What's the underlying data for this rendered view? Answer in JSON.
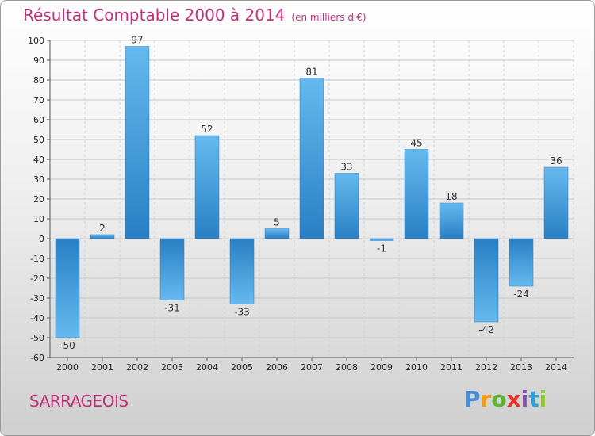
{
  "header": {
    "title": "Résultat Comptable 2000 à 2014",
    "unit": "(en milliers d'€)"
  },
  "footer": {
    "place": "SARRAGEOIS"
  },
  "logo": {
    "letters": [
      "P",
      "r",
      "o",
      "x",
      "i",
      "t",
      "i"
    ],
    "colors": [
      "#4a8fd6",
      "#f39a1f",
      "#5bb233",
      "#e5332a",
      "#8a4fb6",
      "#2aa3d8",
      "#8cc63f"
    ]
  },
  "colors": {
    "bar_top": "#65b9ee",
    "bar_bottom": "#2a7fc4",
    "title": "#c0307a"
  },
  "chart_data": {
    "type": "bar",
    "title": "Résultat Comptable 2000 à 2014",
    "categories": [
      "2000",
      "2001",
      "2002",
      "2003",
      "2004",
      "2005",
      "2006",
      "2007",
      "2008",
      "2009",
      "2010",
      "2011",
      "2012",
      "2013",
      "2014"
    ],
    "values": [
      -50,
      2,
      97,
      -31,
      52,
      -33,
      5,
      81,
      33,
      -1,
      45,
      18,
      -42,
      -24,
      36
    ],
    "ylim": [
      -60,
      100
    ],
    "yticks": [
      100,
      90,
      80,
      70,
      60,
      50,
      40,
      30,
      20,
      10,
      0,
      -10,
      -20,
      -30,
      -40,
      -50,
      -60
    ],
    "grid": true,
    "legend": "none"
  }
}
